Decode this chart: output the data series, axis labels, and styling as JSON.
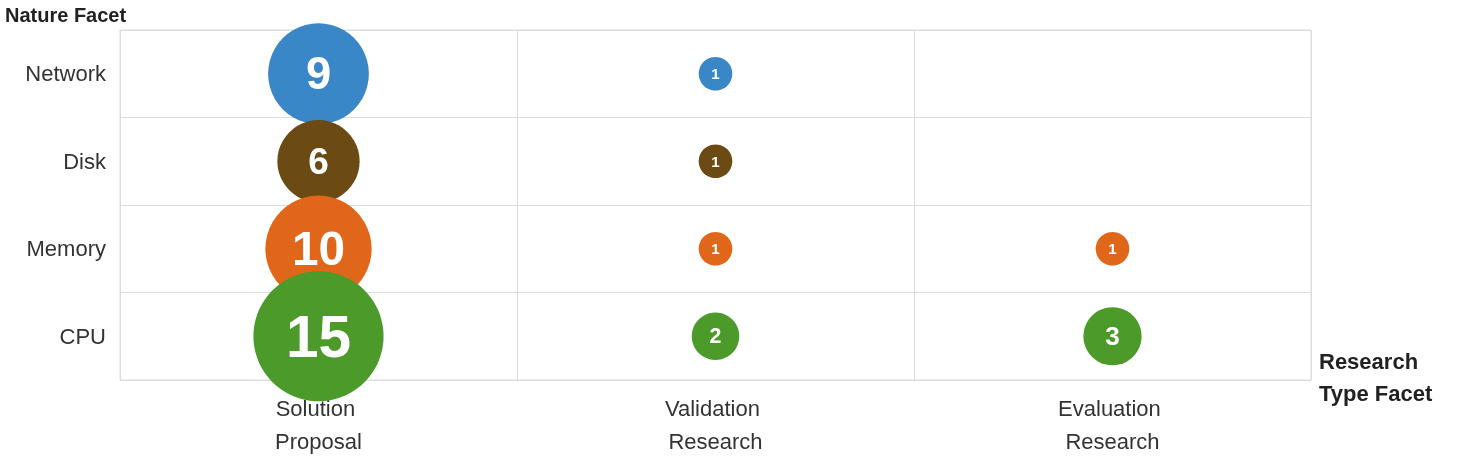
{
  "chart_data": {
    "type": "heatmap",
    "title": "Nature Facet",
    "xlabel": "Research Type Facet",
    "categories": [
      "Solution Proposal",
      "Validation Research",
      "Evaluation Research"
    ],
    "y_categories": [
      "Network",
      "Disk",
      "Memory",
      "CPU"
    ],
    "cells": [
      [
        9,
        1,
        null
      ],
      [
        6,
        1,
        null
      ],
      [
        10,
        1,
        1
      ],
      [
        15,
        2,
        3
      ]
    ],
    "colors": [
      "#3a87c8",
      "#6b4a14",
      "#e0661a",
      "#4c9a2a"
    ],
    "data_labels": true,
    "grid": true
  }
}
